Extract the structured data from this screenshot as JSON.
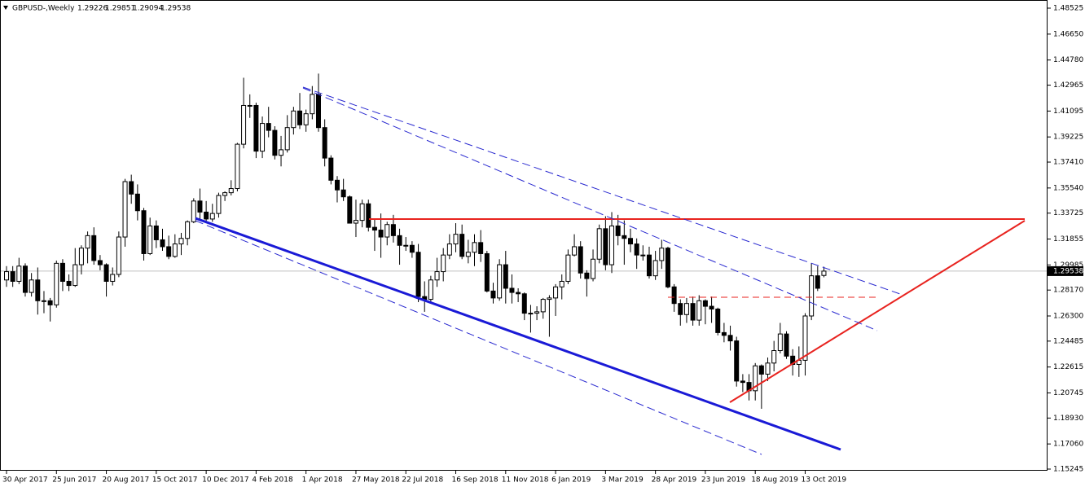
{
  "chart_data": {
    "type": "candlestick",
    "title": "GBPUSD-,Weekly",
    "categories": [
      "30 Apr 2017",
      null,
      null,
      null,
      null,
      null,
      null,
      null,
      "25 Jun 2017",
      null,
      null,
      null,
      null,
      null,
      null,
      null,
      "20 Aug 2017",
      null,
      null,
      null,
      null,
      null,
      null,
      null,
      "15 Oct 2017",
      null,
      null,
      null,
      null,
      null,
      null,
      null,
      "10 Dec 2017",
      null,
      null,
      null,
      null,
      null,
      null,
      null,
      "4 Feb 2018",
      null,
      null,
      null,
      null,
      null,
      null,
      null,
      "1 Apr 2018",
      null,
      null,
      null,
      null,
      null,
      null,
      null,
      "27 May 2018",
      null,
      null,
      null,
      null,
      null,
      null,
      null,
      "22 Jul 2018",
      null,
      null,
      null,
      null,
      null,
      null,
      null,
      "16 Sep 2018",
      null,
      null,
      null,
      null,
      null,
      null,
      null,
      "11 Nov 2018",
      null,
      null,
      null,
      null,
      null,
      null,
      null,
      "6 Jan 2019",
      null,
      null,
      null,
      null,
      null,
      null,
      null,
      "3 Mar 2019",
      null,
      null,
      null,
      null,
      null,
      null,
      null,
      "28 Apr 2019",
      null,
      null,
      null,
      null,
      null,
      null,
      null,
      "23 Jun 2019",
      null,
      null,
      null,
      null,
      null,
      null,
      null,
      "18 Aug 2019",
      null,
      null,
      null,
      null,
      null,
      null,
      null,
      "13 Oct 2019",
      null,
      null,
      null
    ],
    "open": [
      1.289,
      1.295,
      1.288,
      1.299,
      1.28,
      1.289,
      1.274,
      1.274,
      1.271,
      1.301,
      1.288,
      1.285,
      1.3,
      1.312,
      1.321,
      1.303,
      1.3,
      1.288,
      1.293,
      1.32,
      1.36,
      1.351,
      1.339,
      1.308,
      1.328,
      1.318,
      1.313,
      1.306,
      1.315,
      1.319,
      1.331,
      1.346,
      1.338,
      1.333,
      1.337,
      1.35,
      1.352,
      1.355,
      1.387,
      1.415,
      1.415,
      1.382,
      1.402,
      1.397,
      1.379,
      1.383,
      1.399,
      1.411,
      1.401,
      1.409,
      1.423,
      1.399,
      1.377,
      1.361,
      1.354,
      1.349,
      1.33,
      1.332,
      1.344,
      1.327,
      1.325,
      1.32,
      1.329,
      1.321,
      1.314,
      1.314,
      1.309,
      1.277,
      1.275,
      1.289,
      1.295,
      1.307,
      1.315,
      1.322,
      1.306,
      1.309,
      1.316,
      1.308,
      1.281,
      1.276,
      1.3,
      1.283,
      1.28,
      1.279,
      1.265,
      1.265,
      1.266,
      1.275,
      1.276,
      1.284,
      1.288,
      1.307,
      1.313,
      1.294,
      1.29,
      1.304,
      1.326,
      1.3,
      1.328,
      1.321,
      1.319,
      1.315,
      1.307,
      1.307,
      1.292,
      1.303,
      1.312,
      1.284,
      1.272,
      1.264,
      1.272,
      1.26,
      1.274,
      1.27,
      1.268,
      1.251,
      1.249,
      1.245,
      1.216,
      1.215,
      1.209,
      1.227,
      1.221,
      1.229,
      1.238,
      1.25,
      1.234,
      1.228,
      1.231,
      1.263,
      1.292,
      1.29226
    ],
    "high": [
      1.299,
      1.299,
      1.305,
      1.301,
      1.294,
      1.298,
      1.281,
      1.276,
      1.303,
      1.304,
      1.293,
      1.312,
      1.314,
      1.324,
      1.327,
      1.307,
      1.301,
      1.298,
      1.324,
      1.362,
      1.365,
      1.358,
      1.341,
      1.334,
      1.332,
      1.326,
      1.321,
      1.322,
      1.323,
      1.332,
      1.348,
      1.355,
      1.346,
      1.344,
      1.352,
      1.353,
      1.361,
      1.388,
      1.435,
      1.423,
      1.417,
      1.407,
      1.414,
      1.4,
      1.393,
      1.408,
      1.414,
      1.424,
      1.412,
      1.429,
      1.438,
      1.405,
      1.379,
      1.364,
      1.362,
      1.35,
      1.347,
      1.347,
      1.347,
      1.333,
      1.337,
      1.331,
      1.336,
      1.326,
      1.32,
      1.317,
      1.315,
      1.288,
      1.292,
      1.305,
      1.312,
      1.322,
      1.33,
      1.329,
      1.318,
      1.322,
      1.325,
      1.31,
      1.287,
      1.304,
      1.31,
      1.293,
      1.283,
      1.28,
      1.271,
      1.27,
      1.276,
      1.278,
      1.286,
      1.293,
      1.311,
      1.322,
      1.317,
      1.296,
      1.311,
      1.329,
      1.335,
      1.338,
      1.336,
      1.332,
      1.326,
      1.319,
      1.314,
      1.313,
      1.31,
      1.318,
      1.313,
      1.286,
      1.275,
      1.276,
      1.277,
      1.278,
      1.275,
      1.277,
      1.269,
      1.258,
      1.256,
      1.248,
      1.221,
      1.221,
      1.229,
      1.228,
      1.233,
      1.245,
      1.258,
      1.252,
      1.239,
      1.241,
      1.265,
      1.301,
      1.299,
      1.29851
    ],
    "low": [
      1.284,
      1.284,
      1.286,
      1.277,
      1.277,
      1.264,
      1.265,
      1.259,
      1.269,
      1.281,
      1.281,
      1.284,
      1.293,
      1.301,
      1.3,
      1.296,
      1.277,
      1.285,
      1.291,
      1.313,
      1.344,
      1.332,
      1.303,
      1.307,
      1.312,
      1.31,
      1.304,
      1.305,
      1.307,
      1.314,
      1.33,
      1.332,
      1.33,
      1.331,
      1.334,
      1.346,
      1.35,
      1.353,
      1.384,
      1.406,
      1.377,
      1.377,
      1.392,
      1.376,
      1.371,
      1.381,
      1.394,
      1.398,
      1.396,
      1.405,
      1.396,
      1.371,
      1.358,
      1.345,
      1.346,
      1.33,
      1.32,
      1.327,
      1.324,
      1.31,
      1.305,
      1.314,
      1.316,
      1.3,
      1.31,
      1.305,
      1.273,
      1.266,
      1.272,
      1.284,
      1.288,
      1.304,
      1.309,
      1.304,
      1.301,
      1.299,
      1.302,
      1.28,
      1.272,
      1.274,
      1.272,
      1.272,
      1.273,
      1.26,
      1.251,
      1.26,
      1.261,
      1.248,
      1.263,
      1.275,
      1.286,
      1.306,
      1.29,
      1.277,
      1.288,
      1.301,
      1.296,
      1.294,
      1.314,
      1.3,
      1.309,
      1.297,
      1.303,
      1.29,
      1.289,
      1.297,
      1.283,
      1.266,
      1.256,
      1.258,
      1.256,
      1.256,
      1.257,
      1.258,
      1.249,
      1.244,
      1.238,
      1.212,
      1.208,
      1.202,
      1.202,
      1.196,
      1.216,
      1.223,
      1.236,
      1.232,
      1.22,
      1.219,
      1.22,
      1.26,
      1.281,
      1.29094
    ],
    "close": [
      1.295,
      1.288,
      1.299,
      1.28,
      1.289,
      1.274,
      1.274,
      1.271,
      1.301,
      1.288,
      1.285,
      1.3,
      1.312,
      1.321,
      1.303,
      1.3,
      1.288,
      1.293,
      1.32,
      1.36,
      1.351,
      1.339,
      1.308,
      1.328,
      1.318,
      1.313,
      1.306,
      1.315,
      1.319,
      1.331,
      1.346,
      1.338,
      1.333,
      1.337,
      1.35,
      1.352,
      1.355,
      1.387,
      1.415,
      1.415,
      1.382,
      1.402,
      1.397,
      1.379,
      1.383,
      1.399,
      1.411,
      1.401,
      1.409,
      1.423,
      1.399,
      1.377,
      1.361,
      1.354,
      1.349,
      1.33,
      1.332,
      1.344,
      1.327,
      1.325,
      1.32,
      1.329,
      1.321,
      1.314,
      1.314,
      1.309,
      1.277,
      1.275,
      1.289,
      1.295,
      1.307,
      1.315,
      1.322,
      1.306,
      1.309,
      1.316,
      1.308,
      1.281,
      1.276,
      1.3,
      1.283,
      1.28,
      1.279,
      1.265,
      1.265,
      1.266,
      1.275,
      1.276,
      1.284,
      1.288,
      1.307,
      1.313,
      1.294,
      1.29,
      1.304,
      1.326,
      1.3,
      1.328,
      1.321,
      1.319,
      1.315,
      1.307,
      1.307,
      1.292,
      1.303,
      1.312,
      1.284,
      1.272,
      1.264,
      1.272,
      1.26,
      1.274,
      1.27,
      1.268,
      1.251,
      1.249,
      1.245,
      1.216,
      1.215,
      1.209,
      1.227,
      1.221,
      1.229,
      1.238,
      1.25,
      1.234,
      1.228,
      1.231,
      1.263,
      1.292,
      1.283,
      1.29538
    ],
    "ylim": [
      1.15245,
      1.48525
    ],
    "yticks": [
      1.48525,
      {
        "value": 1.4665,
        "label": "1.46650"
      },
      {
        "value": 1.4478,
        "label": "1.44780"
      },
      1.42965,
      1.41095,
      1.39225,
      {
        "value": 1.3741,
        "label": "1.37410"
      },
      {
        "value": 1.3554,
        "label": "1.35540"
      },
      1.33725,
      1.31855,
      1.29985,
      {
        "value": 1.2817,
        "label": "1.28170"
      },
      {
        "value": 1.263,
        "label": "1.26300"
      },
      1.24485,
      1.22615,
      1.20745,
      {
        "value": 1.1893,
        "label": "1.18930"
      },
      {
        "value": 1.1706,
        "label": "1.17060"
      },
      1.15245
    ],
    "colors": {
      "up": "#ffffff",
      "down": "#000000",
      "wick": "#000000"
    }
  }
}
